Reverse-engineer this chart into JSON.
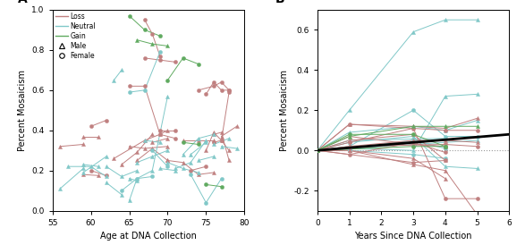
{
  "xlabel_A": "Age at DNA Collection",
  "xlabel_B": "Years Since DNA Collection",
  "ylabel_A": "Percent Mosaicism",
  "ylabel_B": "Percent Mosaicism",
  "ylim_A": [
    0.0,
    1.0
  ],
  "xlim_A": [
    55,
    80
  ],
  "ylim_B": [
    -0.3,
    0.7
  ],
  "xlim_B": [
    0,
    6
  ],
  "yticks_A": [
    0.0,
    0.2,
    0.4,
    0.6,
    0.8,
    1.0
  ],
  "xticks_A": [
    55,
    60,
    65,
    70,
    75,
    80
  ],
  "yticks_B": [
    -0.2,
    0.0,
    0.2,
    0.4,
    0.6
  ],
  "xticks_B": [
    0,
    1,
    2,
    3,
    4,
    5,
    6
  ],
  "color_loss": "#c08080",
  "color_neutral": "#80c8c8",
  "color_gain": "#60aa60",
  "color_trend": "#111111",
  "color_zero": "#aaaaaa",
  "panel_A_series": [
    {
      "color": "loss",
      "marker": "triangle",
      "points": [
        [
          56,
          0.32
        ],
        [
          59,
          0.33
        ]
      ]
    },
    {
      "color": "loss",
      "marker": "triangle",
      "points": [
        [
          59,
          0.18
        ],
        [
          61,
          0.175
        ]
      ]
    },
    {
      "color": "loss",
      "marker": "triangle",
      "points": [
        [
          59,
          0.37
        ],
        [
          61,
          0.37
        ]
      ]
    },
    {
      "color": "loss",
      "marker": "circle",
      "points": [
        [
          60,
          0.42
        ],
        [
          62,
          0.45
        ]
      ]
    },
    {
      "color": "loss",
      "marker": "circle",
      "points": [
        [
          60,
          0.2
        ],
        [
          62,
          0.175
        ]
      ]
    },
    {
      "color": "loss",
      "marker": "triangle",
      "points": [
        [
          63,
          0.26
        ],
        [
          67,
          0.35
        ],
        [
          69,
          0.38
        ],
        [
          70,
          0.4
        ]
      ]
    },
    {
      "color": "loss",
      "marker": "triangle",
      "points": [
        [
          64,
          0.23
        ],
        [
          66,
          0.29
        ],
        [
          68,
          0.38
        ]
      ]
    },
    {
      "color": "loss",
      "marker": "circle",
      "points": [
        [
          65,
          0.62
        ],
        [
          67,
          0.62
        ],
        [
          69,
          0.38
        ],
        [
          71,
          0.36
        ]
      ]
    },
    {
      "color": "loss",
      "marker": "triangle",
      "points": [
        [
          65,
          0.32
        ],
        [
          67,
          0.31
        ],
        [
          70,
          0.32
        ]
      ]
    },
    {
      "color": "loss",
      "marker": "triangle",
      "points": [
        [
          66,
          0.25
        ],
        [
          68,
          0.31
        ],
        [
          70,
          0.25
        ]
      ]
    },
    {
      "color": "loss",
      "marker": "circle",
      "points": [
        [
          67,
          0.95
        ],
        [
          68,
          0.88
        ],
        [
          69,
          0.77
        ]
      ]
    },
    {
      "color": "loss",
      "marker": "circle",
      "points": [
        [
          67,
          0.76
        ],
        [
          69,
          0.75
        ],
        [
          71,
          0.74
        ]
      ]
    },
    {
      "color": "loss",
      "marker": "triangle",
      "points": [
        [
          68,
          0.34
        ],
        [
          70,
          0.36
        ]
      ]
    },
    {
      "color": "loss",
      "marker": "circle",
      "points": [
        [
          69,
          0.4
        ],
        [
          71,
          0.4
        ]
      ]
    },
    {
      "color": "loss",
      "marker": "triangle",
      "points": [
        [
          70,
          0.25
        ],
        [
          72,
          0.24
        ],
        [
          74,
          0.18
        ],
        [
          76,
          0.19
        ]
      ]
    },
    {
      "color": "loss",
      "marker": "triangle",
      "points": [
        [
          72,
          0.35
        ],
        [
          74,
          0.35
        ],
        [
          76,
          0.35
        ]
      ]
    },
    {
      "color": "loss",
      "marker": "circle",
      "points": [
        [
          73,
          0.2
        ],
        [
          75,
          0.22
        ]
      ]
    },
    {
      "color": "loss",
      "marker": "circle",
      "points": [
        [
          74,
          0.6
        ],
        [
          76,
          0.62
        ],
        [
          77,
          0.64
        ],
        [
          78,
          0.6
        ]
      ]
    },
    {
      "color": "loss",
      "marker": "circle",
      "points": [
        [
          75,
          0.58
        ],
        [
          76,
          0.64
        ],
        [
          77,
          0.6
        ],
        [
          78,
          0.6
        ]
      ]
    },
    {
      "color": "loss",
      "marker": "triangle",
      "points": [
        [
          75,
          0.3
        ],
        [
          76,
          0.39
        ],
        [
          77,
          0.35
        ],
        [
          78,
          0.3
        ]
      ]
    },
    {
      "color": "loss",
      "marker": "triangle",
      "points": [
        [
          76,
          0.38
        ],
        [
          77,
          0.39
        ],
        [
          78,
          0.25
        ]
      ]
    },
    {
      "color": "loss",
      "marker": "circle",
      "points": [
        [
          76,
          0.34
        ],
        [
          77,
          0.35
        ],
        [
          78,
          0.59
        ]
      ]
    },
    {
      "color": "loss",
      "marker": "triangle",
      "points": [
        [
          77,
          0.37
        ],
        [
          79,
          0.42
        ]
      ]
    },
    {
      "color": "neutral",
      "marker": "triangle",
      "points": [
        [
          56,
          0.11
        ],
        [
          59,
          0.21
        ]
      ]
    },
    {
      "color": "neutral",
      "marker": "triangle",
      "points": [
        [
          57,
          0.22
        ],
        [
          60,
          0.22
        ],
        [
          62,
          0.17
        ]
      ]
    },
    {
      "color": "neutral",
      "marker": "triangle",
      "points": [
        [
          59,
          0.19
        ],
        [
          62,
          0.27
        ]
      ]
    },
    {
      "color": "neutral",
      "marker": "triangle",
      "points": [
        [
          59,
          0.23
        ],
        [
          61,
          0.22
        ]
      ]
    },
    {
      "color": "neutral",
      "marker": "triangle",
      "points": [
        [
          62,
          0.22
        ],
        [
          64,
          0.17
        ],
        [
          66,
          0.2
        ]
      ]
    },
    {
      "color": "neutral",
      "marker": "triangle",
      "points": [
        [
          62,
          0.14
        ],
        [
          64,
          0.08
        ]
      ]
    },
    {
      "color": "neutral",
      "marker": "triangle",
      "points": [
        [
          63,
          0.65
        ],
        [
          64,
          0.7
        ]
      ]
    },
    {
      "color": "neutral",
      "marker": "circle",
      "points": [
        [
          64,
          0.1
        ],
        [
          66,
          0.16
        ],
        [
          68,
          0.17
        ]
      ]
    },
    {
      "color": "neutral",
      "marker": "triangle",
      "points": [
        [
          65,
          0.16
        ],
        [
          66,
          0.15
        ]
      ]
    },
    {
      "color": "neutral",
      "marker": "triangle",
      "points": [
        [
          65,
          0.05
        ],
        [
          66,
          0.16
        ],
        [
          68,
          0.2
        ],
        [
          70,
          0.57
        ]
      ]
    },
    {
      "color": "neutral",
      "marker": "circle",
      "points": [
        [
          65,
          0.59
        ],
        [
          67,
          0.6
        ],
        [
          69,
          0.79
        ]
      ]
    },
    {
      "color": "neutral",
      "marker": "triangle",
      "points": [
        [
          66,
          0.24
        ],
        [
          68,
          0.27
        ],
        [
          70,
          0.3
        ]
      ]
    },
    {
      "color": "neutral",
      "marker": "triangle",
      "points": [
        [
          67,
          0.35
        ],
        [
          69,
          0.34
        ]
      ]
    },
    {
      "color": "neutral",
      "marker": "circle",
      "points": [
        [
          68,
          0.3
        ],
        [
          70,
          0.22
        ]
      ]
    },
    {
      "color": "neutral",
      "marker": "triangle",
      "points": [
        [
          69,
          0.21
        ],
        [
          71,
          0.2
        ]
      ]
    },
    {
      "color": "neutral",
      "marker": "triangle",
      "points": [
        [
          70,
          0.24
        ],
        [
          72,
          0.21
        ],
        [
          74,
          0.19
        ]
      ]
    },
    {
      "color": "neutral",
      "marker": "triangle",
      "points": [
        [
          71,
          0.21
        ],
        [
          73,
          0.24
        ],
        [
          75,
          0.35
        ]
      ]
    },
    {
      "color": "neutral",
      "marker": "triangle",
      "points": [
        [
          72,
          0.28
        ],
        [
          74,
          0.36
        ],
        [
          76,
          0.38
        ]
      ]
    },
    {
      "color": "neutral",
      "marker": "triangle",
      "points": [
        [
          73,
          0.28
        ],
        [
          75,
          0.34
        ]
      ]
    },
    {
      "color": "neutral",
      "marker": "circle",
      "points": [
        [
          73,
          0.18
        ],
        [
          75,
          0.04
        ],
        [
          77,
          0.16
        ]
      ]
    },
    {
      "color": "neutral",
      "marker": "triangle",
      "points": [
        [
          74,
          0.25
        ],
        [
          76,
          0.27
        ]
      ]
    },
    {
      "color": "neutral",
      "marker": "triangle",
      "points": [
        [
          76,
          0.33
        ],
        [
          78,
          0.36
        ]
      ]
    },
    {
      "color": "neutral",
      "marker": "triangle",
      "points": [
        [
          77,
          0.32
        ],
        [
          79,
          0.31
        ]
      ]
    },
    {
      "color": "gain",
      "marker": "circle",
      "points": [
        [
          65,
          0.97
        ],
        [
          67,
          0.9
        ],
        [
          69,
          0.87
        ]
      ]
    },
    {
      "color": "gain",
      "marker": "triangle",
      "points": [
        [
          66,
          0.85
        ],
        [
          68,
          0.83
        ],
        [
          70,
          0.82
        ]
      ]
    },
    {
      "color": "gain",
      "marker": "circle",
      "points": [
        [
          70,
          0.65
        ],
        [
          72,
          0.76
        ],
        [
          74,
          0.73
        ]
      ]
    },
    {
      "color": "gain",
      "marker": "circle",
      "points": [
        [
          72,
          0.34
        ],
        [
          74,
          0.33
        ]
      ]
    },
    {
      "color": "gain",
      "marker": "circle",
      "points": [
        [
          75,
          0.13
        ],
        [
          77,
          0.12
        ]
      ]
    }
  ],
  "panel_B_series": [
    {
      "color": "neutral",
      "marker": "triangle",
      "points": [
        [
          0,
          0.0
        ],
        [
          1,
          0.2
        ],
        [
          3,
          0.59
        ],
        [
          4,
          0.65
        ],
        [
          5,
          0.65
        ]
      ]
    },
    {
      "color": "neutral",
      "marker": "triangle",
      "points": [
        [
          0,
          0.0
        ],
        [
          1,
          0.01
        ],
        [
          3,
          0.0
        ],
        [
          4,
          0.27
        ],
        [
          5,
          0.28
        ]
      ]
    },
    {
      "color": "neutral",
      "marker": "triangle",
      "points": [
        [
          0,
          0.0
        ],
        [
          1,
          0.05
        ],
        [
          4,
          0.06
        ]
      ]
    },
    {
      "color": "neutral",
      "marker": "triangle",
      "points": [
        [
          0,
          0.0
        ],
        [
          1,
          0.09
        ],
        [
          3,
          0.12
        ],
        [
          4,
          0.1
        ],
        [
          5,
          0.15
        ]
      ]
    },
    {
      "color": "neutral",
      "marker": "triangle",
      "points": [
        [
          0,
          0.0
        ],
        [
          1,
          0.04
        ],
        [
          3,
          0.07
        ],
        [
          4,
          -0.08
        ],
        [
          5,
          -0.09
        ]
      ]
    },
    {
      "color": "neutral",
      "marker": "triangle",
      "points": [
        [
          0,
          0.0
        ],
        [
          3,
          0.03
        ],
        [
          5,
          0.05
        ]
      ]
    },
    {
      "color": "neutral",
      "marker": "circle",
      "points": [
        [
          0,
          0.0
        ],
        [
          1,
          0.01
        ],
        [
          3,
          0.05
        ],
        [
          4,
          0.01
        ]
      ]
    },
    {
      "color": "neutral",
      "marker": "circle",
      "points": [
        [
          0,
          0.0
        ],
        [
          1,
          0.02
        ],
        [
          3,
          0.2
        ],
        [
          4,
          0.07
        ],
        [
          5,
          0.07
        ]
      ]
    },
    {
      "color": "neutral",
      "marker": "circle",
      "points": [
        [
          0,
          0.0
        ],
        [
          1,
          0.0
        ],
        [
          3,
          -0.02
        ],
        [
          4,
          -0.04
        ]
      ]
    },
    {
      "color": "loss",
      "marker": "triangle",
      "points": [
        [
          0,
          0.0
        ],
        [
          1,
          0.13
        ],
        [
          3,
          0.12
        ],
        [
          4,
          0.11
        ],
        [
          5,
          0.16
        ]
      ]
    },
    {
      "color": "loss",
      "marker": "triangle",
      "points": [
        [
          0,
          0.0
        ],
        [
          1,
          0.05
        ],
        [
          3,
          0.08
        ],
        [
          4,
          -0.05
        ]
      ]
    },
    {
      "color": "loss",
      "marker": "triangle",
      "points": [
        [
          0,
          0.0
        ],
        [
          1,
          0.02
        ],
        [
          3,
          0.05
        ],
        [
          4,
          0.05
        ],
        [
          5,
          0.04
        ]
      ]
    },
    {
      "color": "loss",
      "marker": "triangle",
      "points": [
        [
          0,
          0.0
        ],
        [
          1,
          0.0
        ],
        [
          3,
          -0.07
        ],
        [
          4,
          -0.1
        ],
        [
          5,
          -0.32
        ]
      ]
    },
    {
      "color": "loss",
      "marker": "triangle",
      "points": [
        [
          0,
          0.0
        ],
        [
          1,
          0.0
        ],
        [
          3,
          -0.04
        ],
        [
          4,
          -0.14
        ]
      ]
    },
    {
      "color": "loss",
      "marker": "triangle",
      "points": [
        [
          0,
          0.0
        ],
        [
          1,
          0.07
        ],
        [
          3,
          0.03
        ],
        [
          4,
          0.02
        ]
      ]
    },
    {
      "color": "loss",
      "marker": "circle",
      "points": [
        [
          0,
          0.0
        ],
        [
          1,
          0.13
        ],
        [
          4,
          0.1
        ],
        [
          5,
          0.1
        ]
      ]
    },
    {
      "color": "loss",
      "marker": "circle",
      "points": [
        [
          0,
          0.0
        ],
        [
          1,
          -0.02
        ],
        [
          3,
          0.04
        ],
        [
          4,
          -0.01
        ]
      ]
    },
    {
      "color": "loss",
      "marker": "circle",
      "points": [
        [
          0,
          0.0
        ],
        [
          1,
          0.04
        ],
        [
          3,
          0.11
        ],
        [
          4,
          -0.24
        ],
        [
          5,
          -0.24
        ]
      ]
    },
    {
      "color": "loss",
      "marker": "circle",
      "points": [
        [
          0,
          0.0
        ],
        [
          1,
          0.02
        ],
        [
          4,
          0.03
        ],
        [
          5,
          0.02
        ]
      ]
    },
    {
      "color": "loss",
      "marker": "circle",
      "points": [
        [
          0,
          0.0
        ],
        [
          3,
          -0.06
        ],
        [
          4,
          -0.05
        ]
      ]
    },
    {
      "color": "gain",
      "marker": "triangle",
      "points": [
        [
          0,
          0.0
        ],
        [
          1,
          0.07
        ],
        [
          3,
          0.12
        ],
        [
          4,
          0.12
        ],
        [
          5,
          0.12
        ]
      ]
    },
    {
      "color": "gain",
      "marker": "circle",
      "points": [
        [
          0,
          0.0
        ],
        [
          1,
          0.08
        ],
        [
          3,
          0.08
        ],
        [
          4,
          0.02
        ]
      ]
    },
    {
      "color": "gain",
      "marker": "circle",
      "points": [
        [
          0,
          0.0
        ],
        [
          3,
          0.02
        ],
        [
          4,
          0.02
        ]
      ]
    }
  ],
  "trend_line_B": [
    [
      0,
      0.0
    ],
    [
      6,
      0.08
    ]
  ]
}
